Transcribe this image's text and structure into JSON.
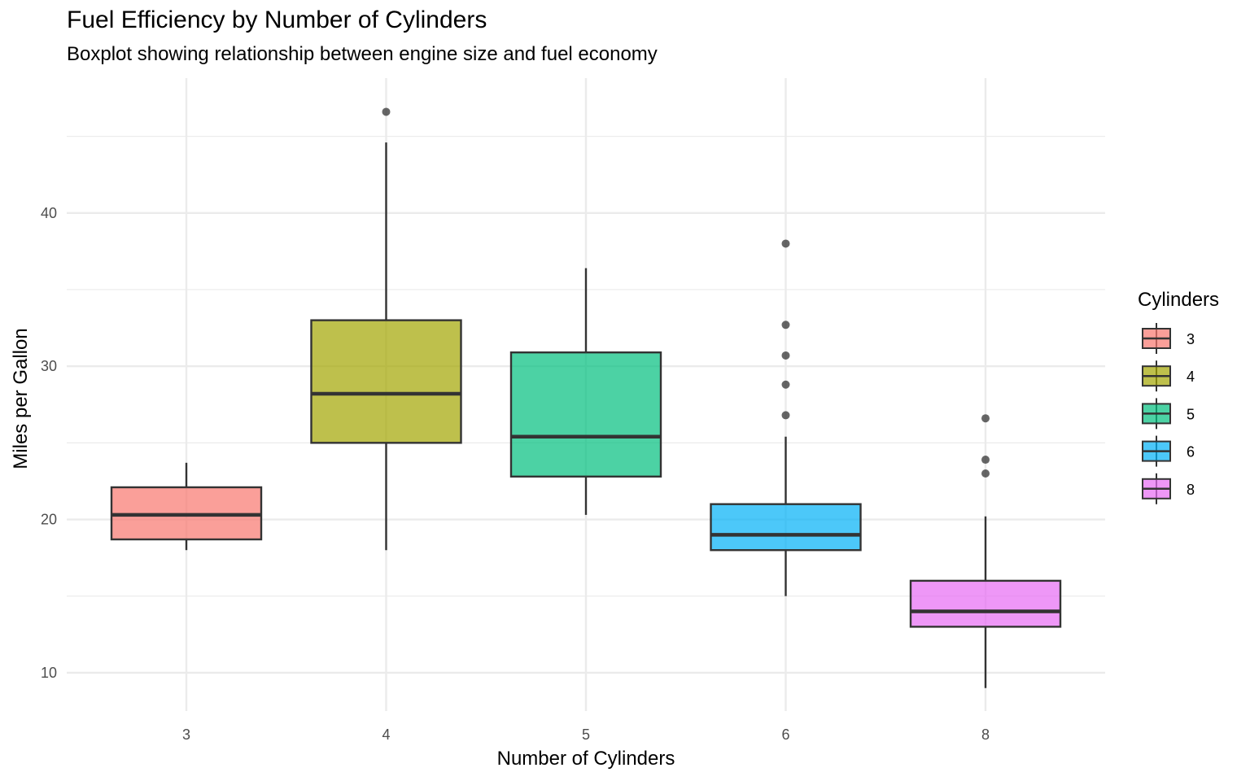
{
  "chart_data": {
    "type": "boxplot",
    "title": "Fuel Efficiency by Number of Cylinders",
    "subtitle": "Boxplot showing relationship between engine size and fuel economy",
    "xlabel": "Number of Cylinders",
    "ylabel": "Miles per Gallon",
    "categories": [
      "3",
      "4",
      "5",
      "6",
      "8"
    ],
    "ylim": [
      7.5,
      48.8
    ],
    "y_ticks": [
      10,
      20,
      30,
      40
    ],
    "grid": true,
    "legend": {
      "title": "Cylinders",
      "placement": "right",
      "entries": [
        "3",
        "4",
        "5",
        "6",
        "8"
      ]
    },
    "colors": {
      "3": "#F8766D",
      "4": "#A3A500",
      "5": "#00BF7D",
      "6": "#00B0F6",
      "8": "#E76BF3"
    },
    "series": [
      {
        "name": "3",
        "whisker_low": 18.0,
        "q1": 18.7,
        "median": 20.3,
        "q3": 22.1,
        "whisker_high": 23.7,
        "outliers": []
      },
      {
        "name": "4",
        "whisker_low": 18.0,
        "q1": 25.0,
        "median": 28.2,
        "q3": 33.0,
        "whisker_high": 44.6,
        "outliers": [
          46.6
        ]
      },
      {
        "name": "5",
        "whisker_low": 20.3,
        "q1": 22.8,
        "median": 25.4,
        "q3": 30.9,
        "whisker_high": 36.4,
        "outliers": []
      },
      {
        "name": "6",
        "whisker_low": 15.0,
        "q1": 18.0,
        "median": 19.0,
        "q3": 21.0,
        "whisker_high": 25.4,
        "outliers": [
          26.8,
          28.8,
          30.7,
          32.7,
          38.0
        ]
      },
      {
        "name": "8",
        "whisker_low": 9.0,
        "q1": 13.0,
        "median": 14.0,
        "q3": 16.0,
        "whisker_high": 20.2,
        "outliers": [
          23.0,
          23.9,
          26.6
        ]
      }
    ]
  }
}
